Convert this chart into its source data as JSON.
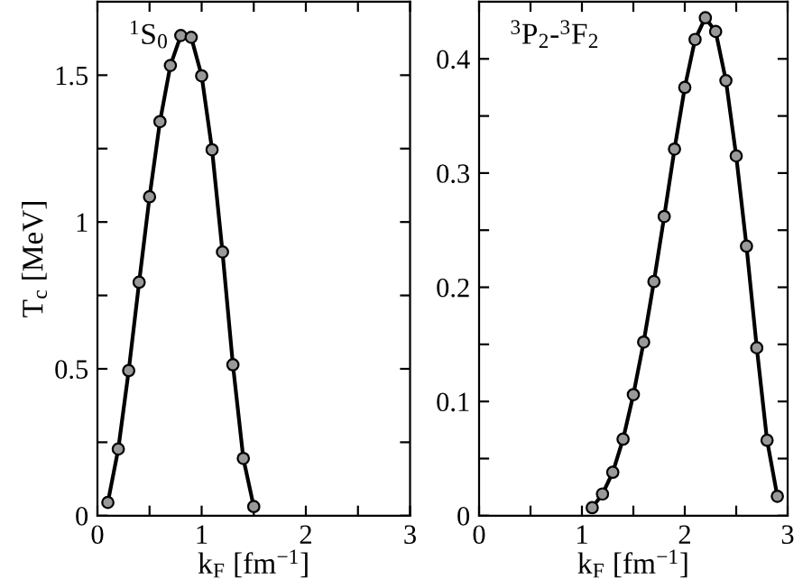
{
  "chart_data": [
    {
      "type": "line",
      "xlabel": "k$_{F}$ [fm$^{−1}$]",
      "ylabel": "T$_{c}$ [MeV]",
      "annotations": [
        "$^{1}$S$_{0}$"
      ],
      "xlim": [
        0,
        3
      ],
      "ylim": [
        0,
        1.75
      ],
      "xticks": [
        0,
        {
          "value": 0.5,
          "label": null
        },
        1,
        {
          "value": 1.5,
          "label": null
        },
        2,
        {
          "value": 2.5,
          "label": null
        },
        3
      ],
      "yticks": [
        0,
        {
          "value": 0.25,
          "label": null
        },
        0.5,
        {
          "value": 0.75,
          "label": null
        },
        1,
        {
          "value": 1.25,
          "label": null
        },
        1.5
      ],
      "marker": "circle",
      "line_style": "solid",
      "x": [
        0.1,
        0.2,
        0.3,
        0.4,
        0.5,
        0.6,
        0.7,
        0.8,
        0.9,
        1.0,
        1.1,
        1.2,
        1.3,
        1.4,
        1.5
      ],
      "series": [
        {
          "color": "#000000",
          "values": [
            0.045,
            0.227,
            0.494,
            0.795,
            1.086,
            1.342,
            1.533,
            1.635,
            1.629,
            1.498,
            1.246,
            0.898,
            0.514,
            0.195,
            0.031
          ]
        }
      ]
    },
    {
      "type": "line",
      "xlabel": "k$_{F}$ [fm$^{−1}$]",
      "annotations": [
        "$^{3}$P$_{2}$-$^{3}$F$_{2}$"
      ],
      "xlim": [
        0,
        3
      ],
      "ylim": [
        0,
        0.45
      ],
      "xticks": [
        0,
        {
          "value": 0.5,
          "label": null
        },
        1,
        {
          "value": 1.5,
          "label": null
        },
        2,
        {
          "value": 2.5,
          "label": null
        },
        3
      ],
      "yticks": [
        0,
        {
          "value": 0.05,
          "label": null
        },
        0.1,
        {
          "value": 0.15,
          "label": null
        },
        0.2,
        {
          "value": 0.25,
          "label": null
        },
        0.3,
        {
          "value": 0.35,
          "label": null
        },
        0.4
      ],
      "marker": "circle",
      "line_style": "solid",
      "x": [
        1.1,
        1.2,
        1.3,
        1.4,
        1.5,
        1.6,
        1.7,
        1.8,
        1.9,
        2.0,
        2.1,
        2.2,
        2.3,
        2.4,
        2.5,
        2.6,
        2.7,
        2.8,
        2.9
      ],
      "series": [
        {
          "color": "#000000",
          "values": [
            0.007,
            0.019,
            0.038,
            0.067,
            0.106,
            0.152,
            0.205,
            0.262,
            0.321,
            0.375,
            0.417,
            0.436,
            0.424,
            0.381,
            0.315,
            0.236,
            0.147,
            0.066,
            0.017
          ]
        }
      ]
    }
  ]
}
